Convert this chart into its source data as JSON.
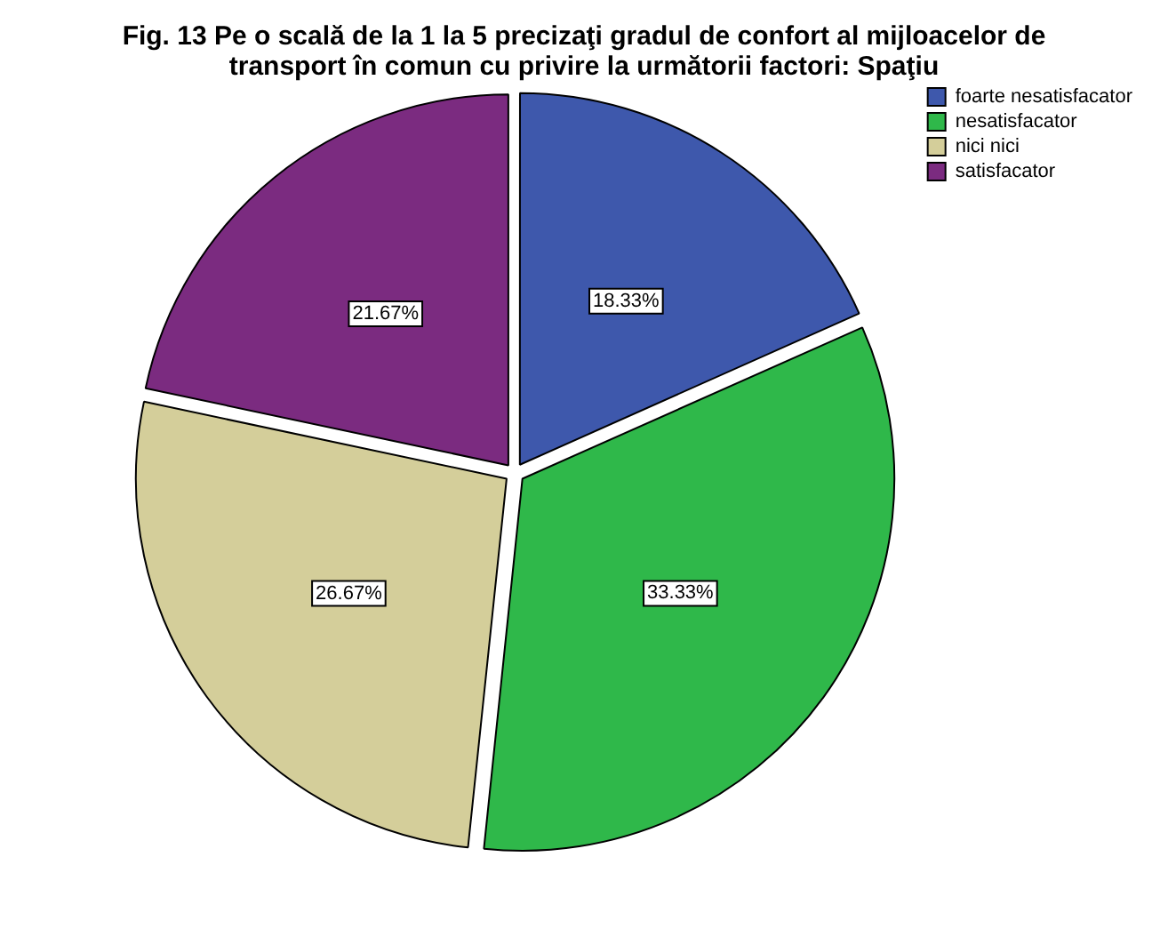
{
  "chart_data": {
    "type": "pie",
    "title": "Fig. 13  Pe o scală de la 1 la 5 precizaţi gradul de confort al mijloacelor de transport în comun cu privire la următorii factori: Spaţiu",
    "categories": [
      "foarte nesatisfacator",
      "nesatisfacator",
      "nici nici",
      "satisfacator"
    ],
    "values": [
      18.33,
      33.33,
      26.67,
      21.67
    ],
    "value_labels": [
      "18.33%",
      "33.33%",
      "26.67%",
      "21.67%"
    ],
    "colors": [
      "#3e58ac",
      "#2fb84a",
      "#d4ce9a",
      "#7b2b80"
    ],
    "legend": "top right"
  }
}
